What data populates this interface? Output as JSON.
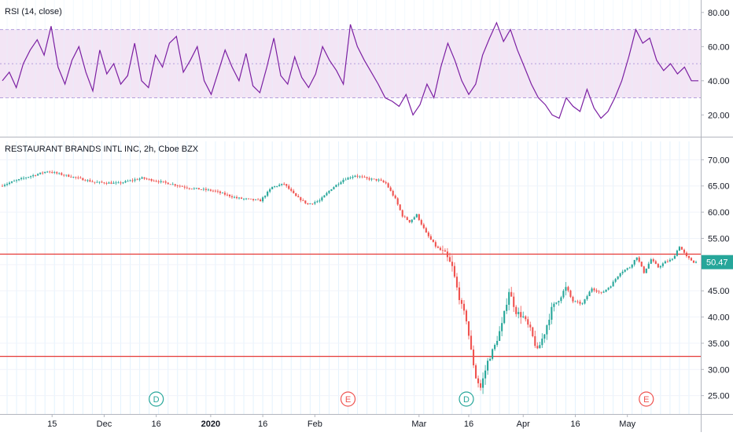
{
  "colors": {
    "up": "#26a69a",
    "down": "#ef5350",
    "rsi_line": "#7b1fa2",
    "rsi_band": "#f3e5f5",
    "level_line": "#e53935",
    "dividend": "#26a69a",
    "earnings": "#ef5350",
    "grid": "#e3f2fd",
    "axis_text": "#131722"
  },
  "chart_data": [
    {
      "type": "line",
      "title": "RSI (14, close)",
      "ylim": [
        10,
        85
      ],
      "y_ticks": [
        "80.00",
        "60.00",
        "40.00",
        "20.00"
      ],
      "y_tick_values": [
        80,
        60,
        40,
        20
      ],
      "band": [
        30,
        70
      ],
      "series": [
        {
          "x": [
            0,
            3,
            6,
            9,
            12,
            15,
            18,
            21,
            24,
            27,
            30,
            33,
            36,
            39,
            42,
            45,
            48,
            51,
            54,
            57,
            60,
            63,
            66,
            69,
            72,
            75,
            78,
            81,
            84,
            87,
            90,
            93,
            96,
            99,
            102,
            105,
            108,
            111,
            114,
            117,
            120,
            123,
            126,
            129,
            132,
            135,
            138,
            141,
            144,
            147,
            150,
            153,
            156,
            159,
            162,
            165,
            168,
            171,
            174,
            177,
            180,
            183,
            186,
            189,
            192,
            195,
            198,
            201,
            204,
            207,
            210,
            213,
            216,
            219,
            222,
            225,
            228,
            231,
            234,
            237,
            240,
            243,
            246,
            249,
            252,
            255,
            258,
            261,
            264,
            267,
            270,
            273,
            276,
            279,
            282,
            285,
            288,
            291,
            294,
            297,
            300
          ],
          "values": [
            40,
            45,
            36,
            50,
            58,
            64,
            55,
            72,
            48,
            38,
            52,
            60,
            45,
            34,
            58,
            44,
            50,
            38,
            43,
            62,
            40,
            36,
            55,
            48,
            62,
            66,
            45,
            52,
            60,
            40,
            32,
            45,
            58,
            48,
            40,
            56,
            37,
            33,
            48,
            65,
            43,
            38,
            54,
            42,
            36,
            44,
            60,
            52,
            46,
            38,
            73,
            60,
            52,
            45,
            38,
            30,
            28,
            25,
            32,
            20,
            26,
            38,
            30,
            48,
            62,
            52,
            40,
            32,
            38,
            55,
            65,
            74,
            63,
            70,
            58,
            48,
            38,
            30,
            26,
            20,
            18,
            30,
            25,
            22,
            35,
            24,
            18,
            22,
            30,
            40,
            54,
            70,
            62,
            65,
            52,
            46,
            50,
            44,
            48,
            40,
            40
          ]
        }
      ]
    },
    {
      "type": "candlestick",
      "title": "RESTAURANT BRANDS INTL INC, 2h, Cboe BZX",
      "ylim": [
        21.5,
        73.5
      ],
      "y_ticks": [
        "70.00",
        "65.00",
        "60.00",
        "55.00",
        "50.00",
        "45.00",
        "40.00",
        "35.00",
        "30.00",
        "25.00"
      ],
      "y_tick_values": [
        70,
        65,
        60,
        55,
        50,
        45,
        40,
        35,
        30,
        25
      ],
      "x_ticks": [
        "15",
        "Dec",
        "16",
        "2020",
        "16",
        "Feb",
        "Mar",
        "16",
        "Apr",
        "16",
        "May"
      ],
      "x_tick_index": [
        21,
        43,
        65,
        88,
        110,
        132,
        176,
        197,
        220,
        242,
        264
      ],
      "n_bars": 294,
      "close_price": 50.47,
      "close_label": "50.47",
      "horizontal_levels": [
        52.0,
        32.5
      ],
      "price_path": [
        [
          0,
          65.0
        ],
        [
          10,
          66.5
        ],
        [
          20,
          67.8
        ],
        [
          30,
          66.8
        ],
        [
          40,
          65.7
        ],
        [
          50,
          65.5
        ],
        [
          60,
          66.5
        ],
        [
          70,
          65.6
        ],
        [
          80,
          64.6
        ],
        [
          90,
          64.1
        ],
        [
          100,
          62.7
        ],
        [
          110,
          62.2
        ],
        [
          115,
          64.8
        ],
        [
          120,
          65.4
        ],
        [
          125,
          63.0
        ],
        [
          130,
          61.5
        ],
        [
          135,
          62.2
        ],
        [
          140,
          64.5
        ],
        [
          145,
          66.2
        ],
        [
          150,
          67.0
        ],
        [
          155,
          66.4
        ],
        [
          160,
          66.1
        ],
        [
          163,
          65.5
        ],
        [
          167,
          62.5
        ],
        [
          170,
          59.3
        ],
        [
          173,
          58.2
        ],
        [
          176,
          59.5
        ],
        [
          180,
          56.0
        ],
        [
          184,
          53.5
        ],
        [
          188,
          52.0
        ],
        [
          191,
          49.5
        ],
        [
          193,
          45.5
        ],
        [
          195,
          42.0
        ],
        [
          197,
          39.5
        ],
        [
          199,
          33.5
        ],
        [
          201,
          28.5
        ],
        [
          203,
          26.5
        ],
        [
          206,
          31.5
        ],
        [
          209,
          34.5
        ],
        [
          212,
          38.5
        ],
        [
          215,
          45.0
        ],
        [
          218,
          41.0
        ],
        [
          221,
          40.0
        ],
        [
          224,
          37.5
        ],
        [
          227,
          33.5
        ],
        [
          230,
          37.0
        ],
        [
          233,
          41.5
        ],
        [
          236,
          43.5
        ],
        [
          239,
          45.5
        ],
        [
          242,
          43.0
        ],
        [
          246,
          42.5
        ],
        [
          250,
          45.5
        ],
        [
          254,
          44.5
        ],
        [
          258,
          46.0
        ],
        [
          262,
          48.5
        ],
        [
          266,
          49.5
        ],
        [
          269,
          51.5
        ],
        [
          272,
          48.5
        ],
        [
          275,
          51.0
        ],
        [
          278,
          49.5
        ],
        [
          281,
          50.5
        ],
        [
          284,
          51.0
        ],
        [
          287,
          53.5
        ],
        [
          290,
          51.5
        ],
        [
          293,
          50.47
        ]
      ],
      "markers": [
        {
          "bar": 65,
          "label": "D",
          "kind": "dividend"
        },
        {
          "bar": 146,
          "label": "E",
          "kind": "earnings"
        },
        {
          "bar": 196,
          "label": "D",
          "kind": "dividend"
        },
        {
          "bar": 272,
          "label": "E",
          "kind": "earnings"
        }
      ]
    }
  ]
}
